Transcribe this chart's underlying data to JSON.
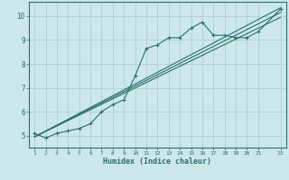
{
  "title": "",
  "xlabel": "Humidex (Indice chaleur)",
  "ylabel": "",
  "bg_color": "#cce8e8",
  "grid_color": "#b0d0d0",
  "line_color": "#2a6e6e",
  "xlim": [
    0.5,
    23.5
  ],
  "ylim": [
    4.5,
    10.6
  ],
  "xticks": [
    1,
    2,
    3,
    4,
    5,
    6,
    7,
    8,
    9,
    10,
    11,
    12,
    13,
    14,
    15,
    16,
    17,
    18,
    19,
    20,
    21,
    23
  ],
  "yticks": [
    5,
    6,
    7,
    8,
    9,
    10
  ],
  "data_x": [
    1,
    2,
    3,
    4,
    5,
    6,
    7,
    8,
    9,
    10,
    11,
    12,
    13,
    14,
    15,
    16,
    17,
    18,
    19,
    20,
    21,
    23
  ],
  "data_y": [
    5.1,
    4.9,
    5.1,
    5.2,
    5.3,
    5.5,
    6.0,
    6.3,
    6.5,
    7.5,
    8.65,
    8.8,
    9.1,
    9.1,
    9.5,
    9.75,
    9.2,
    9.2,
    9.1,
    9.1,
    9.35,
    10.3
  ],
  "line1_x": [
    1,
    23
  ],
  "line1_y": [
    4.95,
    10.35
  ],
  "line2_x": [
    1,
    23
  ],
  "line2_y": [
    4.95,
    10.15
  ],
  "line3_x": [
    1,
    23
  ],
  "line3_y": [
    4.95,
    9.95
  ]
}
